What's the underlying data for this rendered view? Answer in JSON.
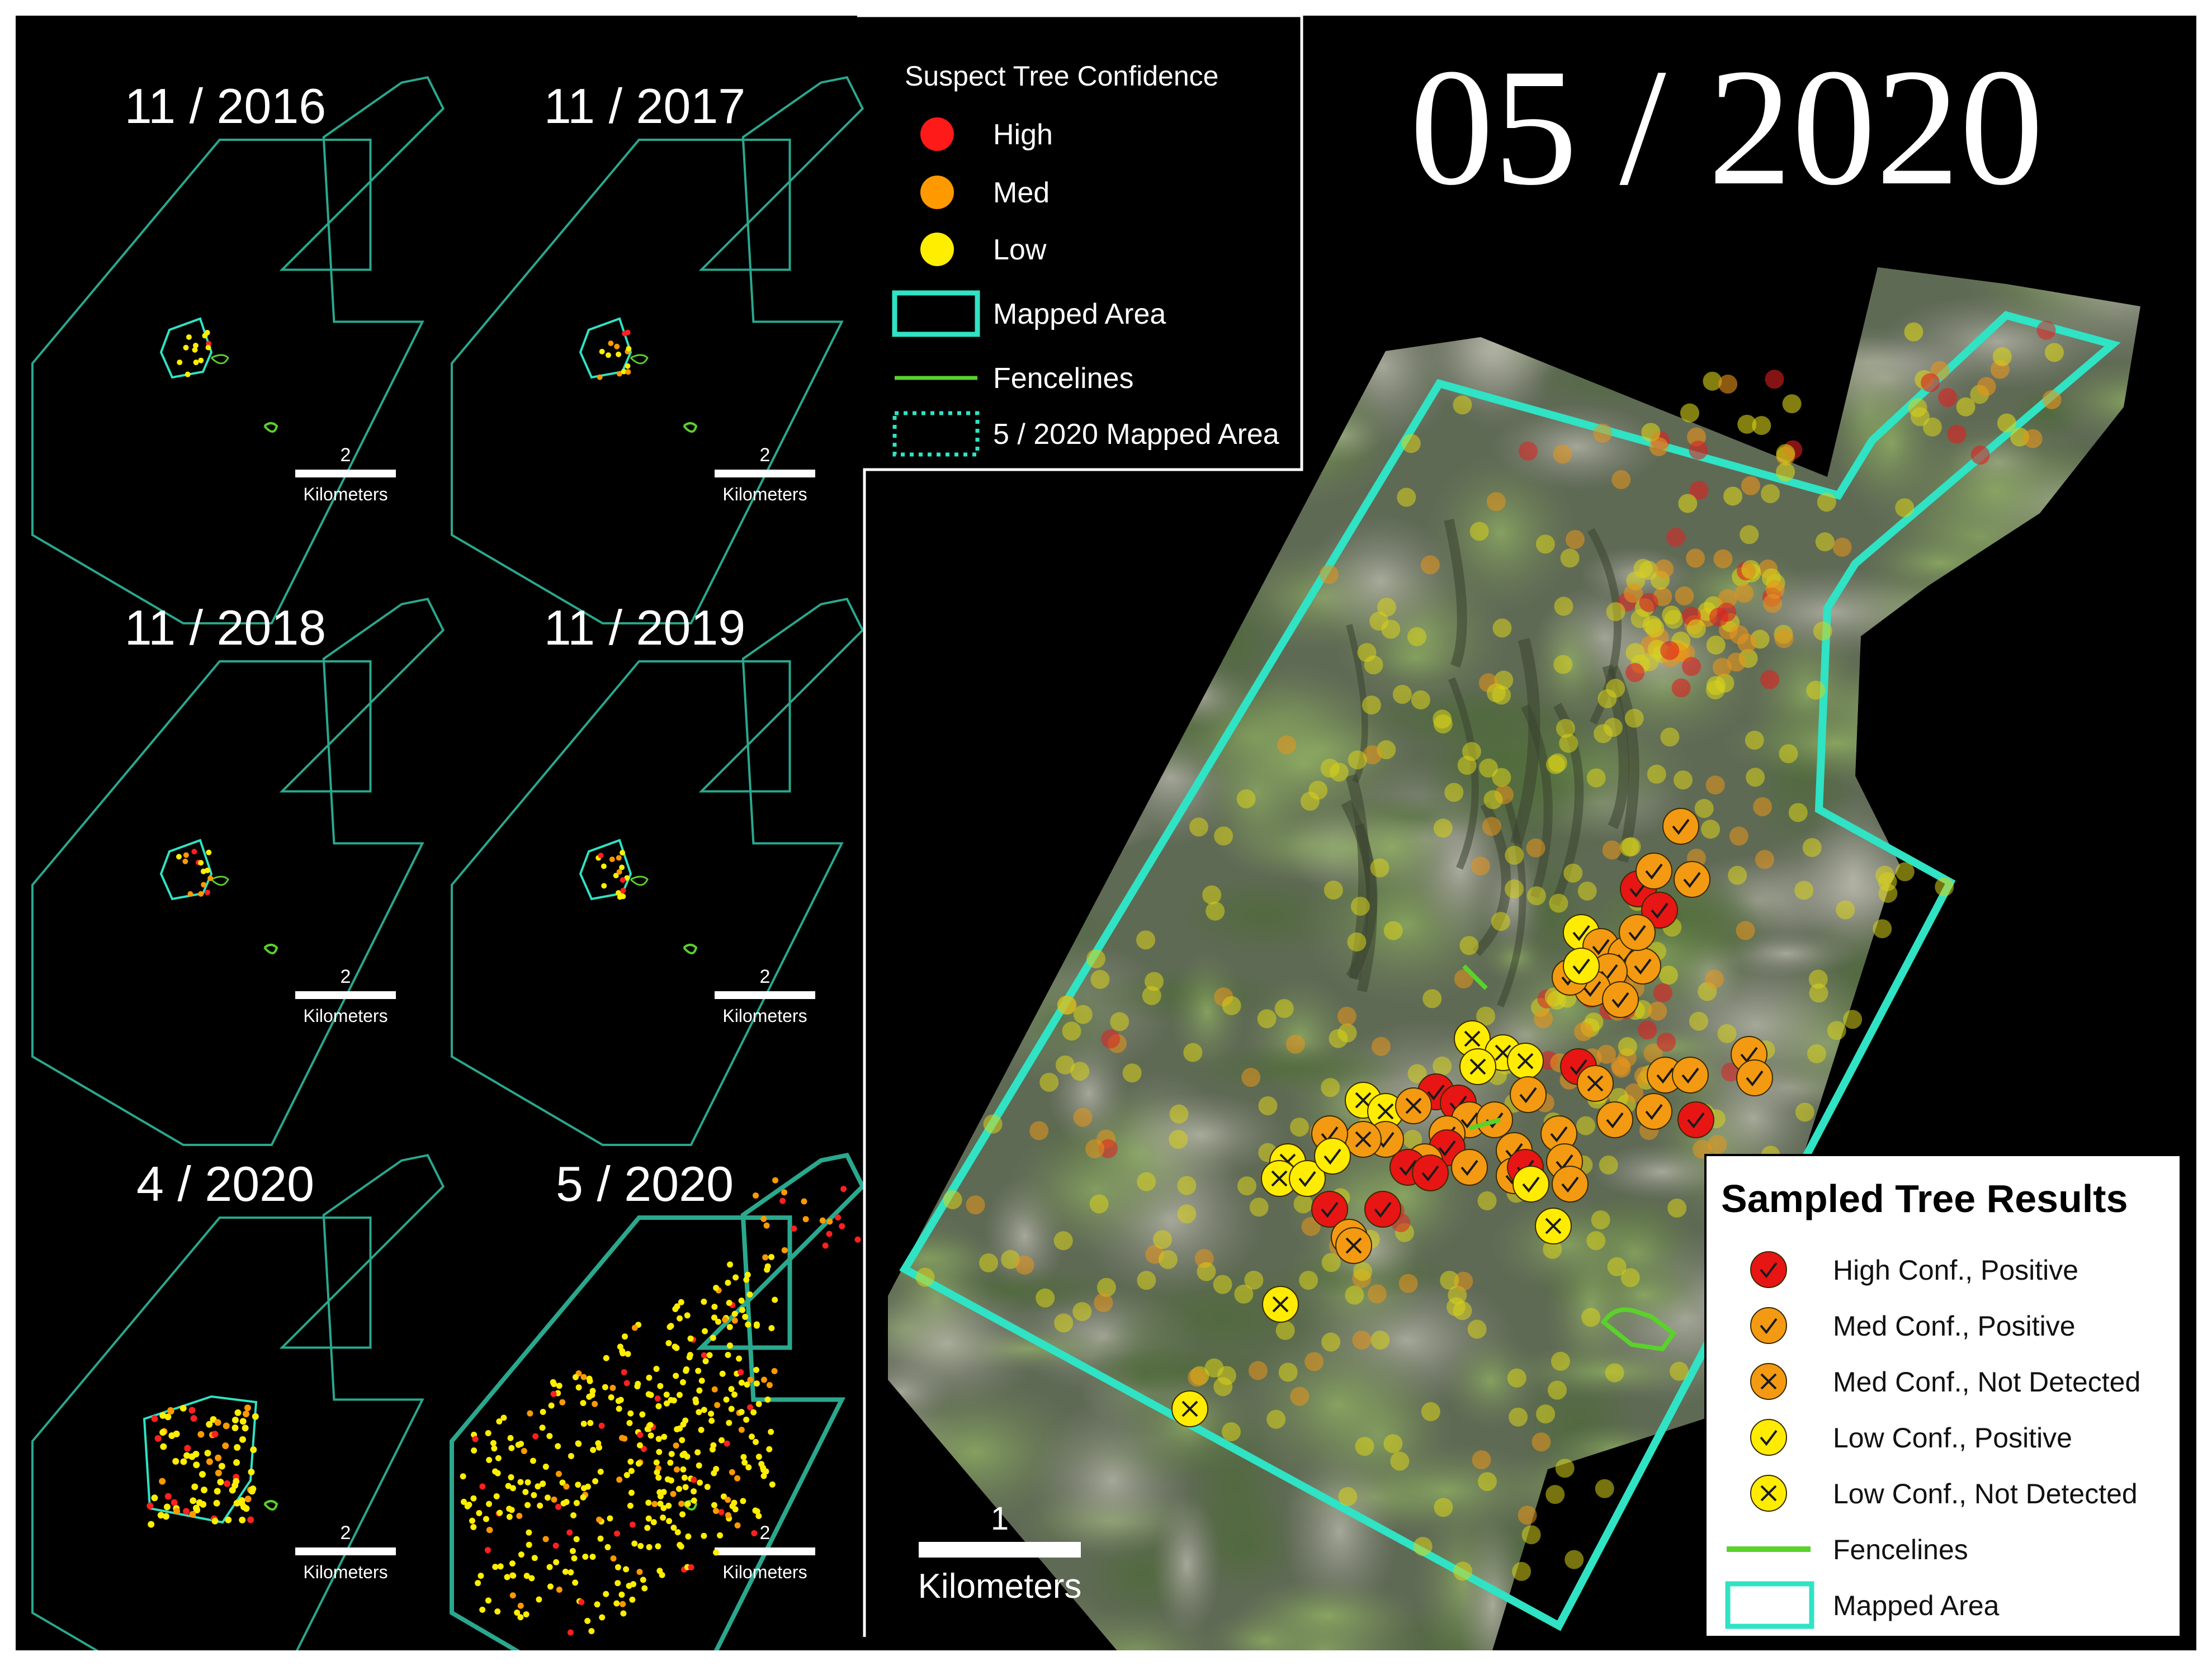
{
  "small_maps": [
    {
      "date": "11 / 2016",
      "scale_value": "2",
      "scale_unit": "Kilometers",
      "mapped_region": "small-2016",
      "points": 12
    },
    {
      "date": "11 / 2017",
      "scale_value": "2",
      "scale_unit": "Kilometers",
      "mapped_region": "small-2017",
      "points": 14
    },
    {
      "date": "11 / 2018",
      "scale_value": "2",
      "scale_unit": "Kilometers",
      "mapped_region": "small-2018",
      "points": 14
    },
    {
      "date": "11 / 2019",
      "scale_value": "2",
      "scale_unit": "Kilometers",
      "mapped_region": "small-2019",
      "points": 16
    },
    {
      "date": "4 / 2020",
      "scale_value": "2",
      "scale_unit": "Kilometers",
      "mapped_region": "medium",
      "points": 90
    },
    {
      "date": "5 / 2020",
      "scale_value": "2",
      "scale_unit": "Kilometers",
      "mapped_region": "full",
      "points": 420
    }
  ],
  "suspect_legend": {
    "title": "Suspect Tree Confidence",
    "items": [
      {
        "label": "High",
        "color": "#ff1a1a"
      },
      {
        "label": "Med",
        "color": "#ff9900"
      },
      {
        "label": "Low",
        "color": "#ffee00"
      },
      {
        "label": "Mapped Area",
        "color": "#2fe3c4"
      },
      {
        "label": "Fencelines",
        "color": "#5ad22b"
      },
      {
        "label": "5 / 2020 Mapped Area",
        "color": "#2fe3c4"
      }
    ]
  },
  "main_map": {
    "date": "05 / 2020",
    "scale_value": "1",
    "scale_unit": "Kilometers"
  },
  "results_legend": {
    "title": "Sampled Tree Results",
    "items": [
      {
        "label": "High Conf., Positive",
        "color": "#e81515",
        "mark": "check"
      },
      {
        "label": "Med Conf., Positive",
        "color": "#f39a12",
        "mark": "check"
      },
      {
        "label": "Med Conf., Not Detected",
        "color": "#f39a12",
        "mark": "cross"
      },
      {
        "label": "Low Conf., Positive",
        "color": "#ffec00",
        "mark": "check"
      },
      {
        "label": "Low Conf., Not Detected",
        "color": "#ffec00",
        "mark": "cross"
      },
      {
        "label": "Fencelines",
        "color": "#5ad22b",
        "mark": "line"
      },
      {
        "label": "Mapped Area",
        "color": "#2fe3c4",
        "mark": "box"
      }
    ]
  }
}
